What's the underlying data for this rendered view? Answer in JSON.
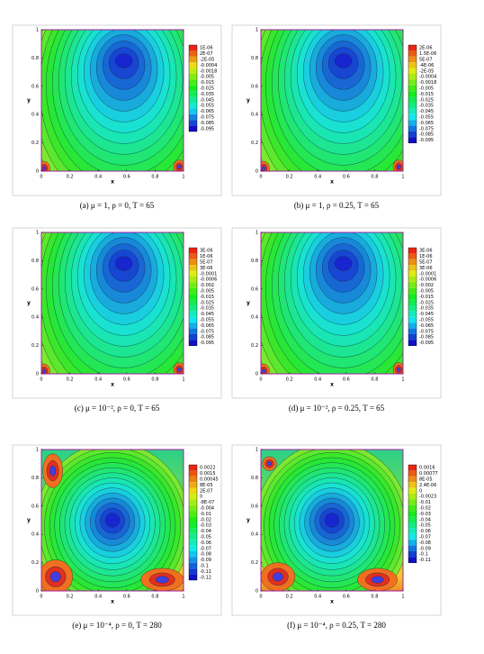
{
  "axes": {
    "x_label": "x",
    "y_label": "y",
    "ticks": [
      "0",
      "0.2",
      "0.4",
      "0.6",
      "0.8",
      "1"
    ]
  },
  "panels": [
    {
      "caption": "(a) μ = 1, ρ = 0, T = 65",
      "legend": [
        "1E-06",
        "2E-07",
        "-2E-05",
        "-0.0004",
        "-0.0018",
        "-0.005",
        "-0.015",
        "-0.025",
        "-0.035",
        "-0.045",
        "-0.055",
        "-0.065",
        "-0.075",
        "-0.085",
        "-0.095"
      ]
    },
    {
      "caption": "(b) μ = 1, ρ = 0.25, T = 65",
      "legend": [
        "2E-06",
        "1.5E-06",
        "5E-07",
        "-4E-06",
        "-2E-05",
        "-0.0004",
        "-0.0018",
        "-0.005",
        "-0.015",
        "-0.025",
        "-0.035",
        "-0.045",
        "-0.055",
        "-0.065",
        "-0.075",
        "-0.085",
        "-0.095"
      ]
    },
    {
      "caption": "(c) μ = 10⁻², ρ = 0, T = 65",
      "legend": [
        "3E-06",
        "1E-06",
        "5E-07",
        "3E-06",
        "-0.0001",
        "-0.0006",
        "-0.002",
        "-0.005",
        "-0.015",
        "-0.025",
        "-0.035",
        "-0.045",
        "-0.055",
        "-0.065",
        "-0.075",
        "-0.085",
        "-0.095"
      ]
    },
    {
      "caption": "(d) μ = 10⁻², ρ = 0.25, T = 65",
      "legend": [
        "3E-06",
        "1E-06",
        "5E-07",
        "3E-06",
        "-0.0001",
        "-0.0006",
        "-0.002",
        "-0.005",
        "-0.015",
        "-0.025",
        "-0.035",
        "-0.045",
        "-0.055",
        "-0.065",
        "-0.075",
        "-0.085",
        "-0.095"
      ]
    },
    {
      "caption": "(e) μ = 10⁻⁴, ρ = 0, T = 280",
      "legend": [
        "0.0022",
        "0.0015",
        "0.00045",
        "8E-05",
        "2E-07",
        "0",
        "-8E-07",
        "-0.004",
        "-0.01",
        "-0.02",
        "-0.03",
        "-0.04",
        "-0.05",
        "-0.06",
        "-0.07",
        "-0.08",
        "-0.09",
        "-0.1",
        "-0.11",
        "-0.12"
      ]
    },
    {
      "caption": "(f) μ = 10⁻⁴, ρ = 0.25, T = 280",
      "legend": [
        "0.0016",
        "0.00077",
        "8E-05",
        "2.4E-06",
        "0",
        "-0.0023",
        "-0.01",
        "-0.02",
        "-0.03",
        "-0.04",
        "-0.05",
        "-0.06",
        "-0.07",
        "-0.08",
        "-0.09",
        "-0.1",
        "-0.11"
      ]
    }
  ]
}
